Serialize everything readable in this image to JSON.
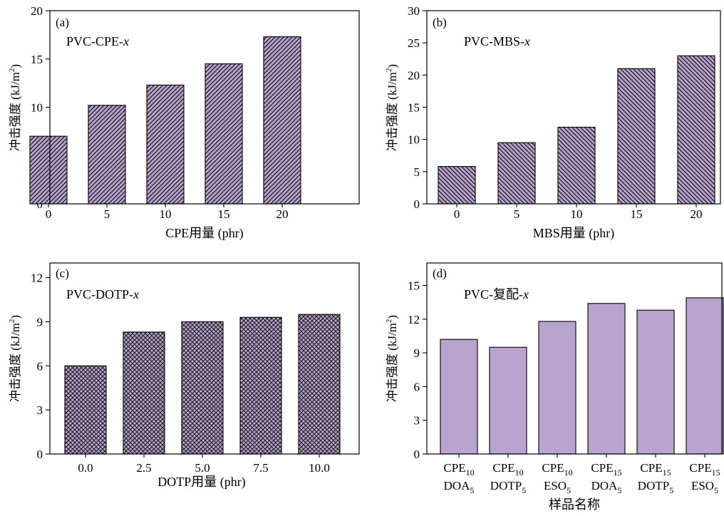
{
  "colors": {
    "bar_fill": "#b9a3cf",
    "hatch": "#1a1a1a",
    "axis": "#000000"
  },
  "chart_data": [
    {
      "type": "bar",
      "panel_label": "(a)",
      "annotation": "PVC-CPE-",
      "annotation_var": "x",
      "categories": [
        "0",
        "5",
        "10",
        "15",
        "20"
      ],
      "values": [
        7.0,
        10.2,
        12.3,
        14.5,
        17.3
      ],
      "xlabel": "CPE用量 (phr)",
      "ylabel": "冲击强度 (kJ/m²)",
      "ylim": [
        0,
        20
      ],
      "yticks": [
        "0",
        "5",
        "10",
        "15",
        "20"
      ],
      "hatch": "forward-diagonal",
      "grid": false
    },
    {
      "type": "bar",
      "panel_label": "(b)",
      "annotation": "PVC-MBS-",
      "annotation_var": "x",
      "categories": [
        "0",
        "5",
        "10",
        "15",
        "20"
      ],
      "values": [
        5.8,
        9.5,
        11.9,
        21.0,
        23.0
      ],
      "xlabel": "MBS用量 (phr)",
      "ylabel": "冲击强度 (kJ/m²)",
      "ylim": [
        0,
        30
      ],
      "yticks": [
        "0",
        "5",
        "10",
        "15",
        "20",
        "25",
        "30"
      ],
      "hatch": "back-diagonal",
      "grid": false
    },
    {
      "type": "bar",
      "panel_label": "(c)",
      "annotation": "PVC-DOTP-",
      "annotation_var": "x",
      "categories": [
        "0.0",
        "2.5",
        "5.0",
        "7.5",
        "10.0"
      ],
      "values": [
        6.0,
        8.3,
        9.0,
        9.3,
        9.5
      ],
      "xlabel": "DOTP用量 (phr)",
      "ylabel": "冲击强度 (kJ/m²)",
      "ylim": [
        0,
        13
      ],
      "yticks": [
        "0",
        "3",
        "6",
        "9",
        "12"
      ],
      "hatch": "crosshatch",
      "grid": false
    },
    {
      "type": "bar",
      "panel_label": "(d)",
      "annotation": "PVC-复配-",
      "annotation_var": "x",
      "categories": [
        {
          "l1": "CPE",
          "l1sub": "10",
          "l2": "DOA",
          "l2sub": "5"
        },
        {
          "l1": "CPE",
          "l1sub": "10",
          "l2": "DOTP",
          "l2sub": "5"
        },
        {
          "l1": "CPE",
          "l1sub": "10",
          "l2": "ESO",
          "l2sub": "5"
        },
        {
          "l1": "CPE",
          "l1sub": "15",
          "l2": "DOA",
          "l2sub": "5"
        },
        {
          "l1": "CPE",
          "l1sub": "15",
          "l2": "DOTP",
          "l2sub": "5"
        },
        {
          "l1": "CPE",
          "l1sub": "15",
          "l2": "ESO",
          "l2sub": "5"
        }
      ],
      "values": [
        10.2,
        9.5,
        11.8,
        13.4,
        12.8,
        13.9
      ],
      "xlabel": "样品名称",
      "ylabel": "冲击强度 (kJ/m²)",
      "ylim": [
        0,
        17
      ],
      "yticks": [
        "0",
        "3",
        "6",
        "9",
        "12",
        "15"
      ],
      "hatch": "none",
      "grid": false
    }
  ]
}
